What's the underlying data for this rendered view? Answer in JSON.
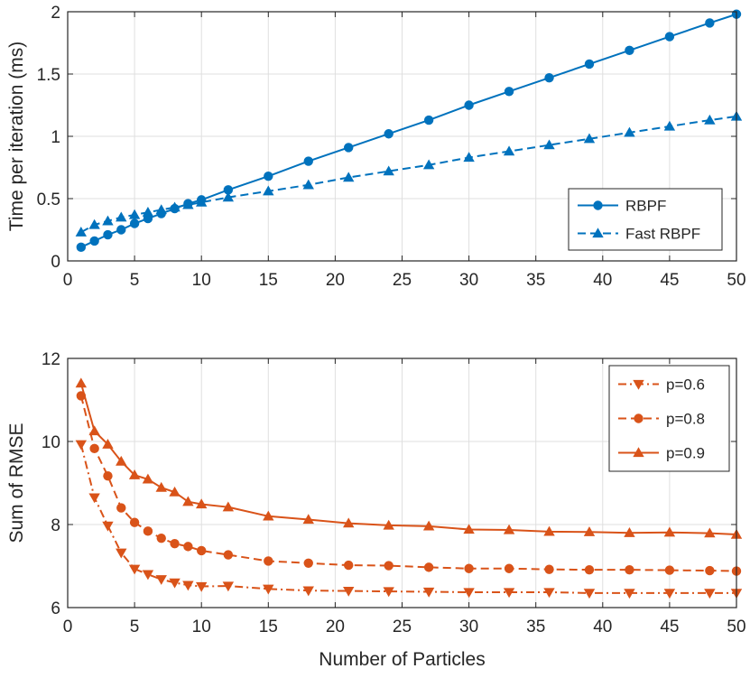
{
  "colors": {
    "blue": "#0072BD",
    "orange": "#D95319",
    "axis": "#262626",
    "grid": "#dfdfdf"
  },
  "chart_data": [
    {
      "type": "line",
      "title": "",
      "xlabel": "",
      "ylabel": "Time per iteration (ms)",
      "xlim": [
        0,
        50
      ],
      "ylim": [
        0,
        2
      ],
      "xticks": [
        0,
        5,
        10,
        15,
        20,
        25,
        30,
        35,
        40,
        45,
        50
      ],
      "yticks": [
        0,
        0.5,
        1,
        1.5,
        2
      ],
      "xtick_labels": [
        "0",
        "5",
        "10",
        "15",
        "20",
        "25",
        "30",
        "35",
        "40",
        "45",
        "50"
      ],
      "ytick_labels": [
        "0",
        "0.5",
        "1",
        "1.5",
        "2"
      ],
      "grid": true,
      "legend_position": "bottom-right",
      "x": [
        1,
        2,
        3,
        4,
        5,
        6,
        7,
        8,
        9,
        10,
        12,
        15,
        18,
        21,
        24,
        27,
        30,
        33,
        36,
        39,
        42,
        45,
        48,
        50
      ],
      "series": [
        {
          "name": "RBPF",
          "color": "#0072BD",
          "line": "solid",
          "marker": "circle",
          "values": [
            0.11,
            0.16,
            0.21,
            0.25,
            0.3,
            0.34,
            0.38,
            0.42,
            0.46,
            0.49,
            0.57,
            0.68,
            0.8,
            0.91,
            1.02,
            1.13,
            1.25,
            1.36,
            1.47,
            1.58,
            1.69,
            1.8,
            1.91,
            1.98
          ]
        },
        {
          "name": "Fast RBPF",
          "color": "#0072BD",
          "line": "dashed",
          "marker": "triangle-up",
          "values": [
            0.23,
            0.29,
            0.32,
            0.35,
            0.37,
            0.39,
            0.41,
            0.43,
            0.45,
            0.47,
            0.51,
            0.56,
            0.61,
            0.67,
            0.72,
            0.77,
            0.83,
            0.88,
            0.93,
            0.98,
            1.03,
            1.08,
            1.13,
            1.16
          ]
        }
      ]
    },
    {
      "type": "line",
      "title": "",
      "xlabel": "Number of Particles",
      "ylabel": "Sum of RMSE",
      "xlim": [
        0,
        50
      ],
      "ylim": [
        6,
        12
      ],
      "xticks": [
        0,
        5,
        10,
        15,
        20,
        25,
        30,
        35,
        40,
        45,
        50
      ],
      "yticks": [
        6,
        8,
        10,
        12
      ],
      "xtick_labels": [
        "0",
        "5",
        "10",
        "15",
        "20",
        "25",
        "30",
        "35",
        "40",
        "45",
        "50"
      ],
      "ytick_labels": [
        "6",
        "8",
        "10",
        "12"
      ],
      "grid": true,
      "legend_position": "top-right",
      "x": [
        1,
        2,
        3,
        4,
        5,
        6,
        7,
        8,
        9,
        10,
        12,
        15,
        18,
        21,
        24,
        27,
        30,
        33,
        36,
        39,
        42,
        45,
        48,
        50
      ],
      "series": [
        {
          "name": "p=0.6",
          "color": "#D95319",
          "line": "dashdot",
          "marker": "triangle-down",
          "values": [
            9.93,
            8.65,
            7.97,
            7.32,
            6.93,
            6.8,
            6.68,
            6.6,
            6.54,
            6.51,
            6.52,
            6.45,
            6.41,
            6.4,
            6.39,
            6.38,
            6.37,
            6.37,
            6.37,
            6.35,
            6.35,
            6.35,
            6.35,
            6.35
          ]
        },
        {
          "name": "p=0.8",
          "color": "#D95319",
          "line": "dashed",
          "marker": "circle",
          "values": [
            11.1,
            9.83,
            9.17,
            8.4,
            8.05,
            7.84,
            7.67,
            7.54,
            7.47,
            7.37,
            7.27,
            7.12,
            7.07,
            7.02,
            7.01,
            6.97,
            6.94,
            6.94,
            6.92,
            6.91,
            6.91,
            6.9,
            6.89,
            6.88
          ]
        },
        {
          "name": "p=0.9",
          "color": "#D95319",
          "line": "solid",
          "marker": "triangle-up",
          "values": [
            11.4,
            10.25,
            9.93,
            9.52,
            9.19,
            9.09,
            8.89,
            8.78,
            8.55,
            8.49,
            8.42,
            8.2,
            8.12,
            8.03,
            7.98,
            7.96,
            7.88,
            7.87,
            7.83,
            7.82,
            7.8,
            7.81,
            7.79,
            7.76
          ]
        }
      ]
    }
  ]
}
